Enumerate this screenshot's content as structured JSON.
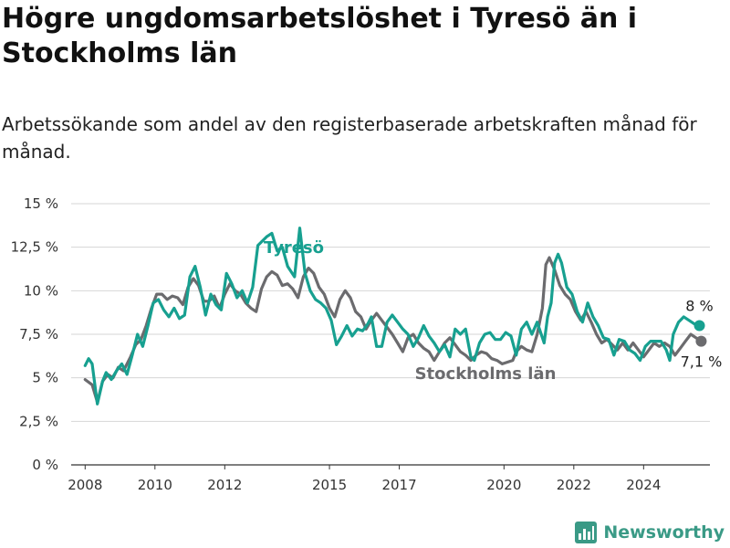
{
  "title": "Högre ungdomsarbetslöshet i Tyresö än i Stockholms län",
  "subtitle": "Arbetssökande som andel av den registerbaserade arbetskraften månad för månad.",
  "brand": {
    "name": "Newsworthy",
    "icon": "bar-chart-logo-icon",
    "color": "#3a9a86"
  },
  "chart_data": {
    "type": "line",
    "ylim": [
      0,
      15
    ],
    "xlim": [
      2007.6,
      2025.9
    ],
    "y_ticks": [
      {
        "value": 0,
        "label": "0 %"
      },
      {
        "value": 2.5,
        "label": "2,5 %"
      },
      {
        "value": 5,
        "label": "5 %"
      },
      {
        "value": 7.5,
        "label": "7,5 %"
      },
      {
        "value": 10,
        "label": "10 %"
      },
      {
        "value": 12.5,
        "label": "12,5 %"
      },
      {
        "value": 15,
        "label": "15 %"
      }
    ],
    "x_ticks": [
      {
        "value": 2008,
        "label": "2008"
      },
      {
        "value": 2010,
        "label": "2010"
      },
      {
        "value": 2012,
        "label": "2012"
      },
      {
        "value": 2015,
        "label": "2015"
      },
      {
        "value": 2017,
        "label": "2017"
      },
      {
        "value": 2020,
        "label": "2020"
      },
      {
        "value": 2022,
        "label": "2022"
      },
      {
        "value": 2024,
        "label": "2024"
      }
    ],
    "grid": "horizontal",
    "series": [
      {
        "name": "Stockholms län",
        "color": "#6b6b6e",
        "end_label": "7,1 %",
        "points": [
          [
            2008.0,
            4.9
          ],
          [
            2008.2,
            4.6
          ],
          [
            2008.35,
            3.6
          ],
          [
            2008.5,
            4.8
          ],
          [
            2008.65,
            5.2
          ],
          [
            2008.8,
            5.0
          ],
          [
            2008.95,
            5.6
          ],
          [
            2009.1,
            5.4
          ],
          [
            2009.3,
            6.2
          ],
          [
            2009.45,
            6.9
          ],
          [
            2009.6,
            7.2
          ],
          [
            2009.75,
            8.0
          ],
          [
            2009.9,
            9.0
          ],
          [
            2010.05,
            9.8
          ],
          [
            2010.2,
            9.8
          ],
          [
            2010.35,
            9.5
          ],
          [
            2010.5,
            9.7
          ],
          [
            2010.65,
            9.6
          ],
          [
            2010.8,
            9.2
          ],
          [
            2010.95,
            10.2
          ],
          [
            2011.1,
            10.7
          ],
          [
            2011.25,
            10.3
          ],
          [
            2011.4,
            9.4
          ],
          [
            2011.55,
            9.4
          ],
          [
            2011.7,
            9.7
          ],
          [
            2011.85,
            9.0
          ],
          [
            2012.0,
            9.8
          ],
          [
            2012.15,
            10.4
          ],
          [
            2012.3,
            10.0
          ],
          [
            2012.45,
            9.8
          ],
          [
            2012.6,
            9.3
          ],
          [
            2012.75,
            9.0
          ],
          [
            2012.9,
            8.8
          ],
          [
            2013.05,
            10.1
          ],
          [
            2013.2,
            10.8
          ],
          [
            2013.35,
            11.1
          ],
          [
            2013.5,
            10.9
          ],
          [
            2013.65,
            10.3
          ],
          [
            2013.8,
            10.4
          ],
          [
            2013.95,
            10.1
          ],
          [
            2014.1,
            9.6
          ],
          [
            2014.25,
            10.8
          ],
          [
            2014.4,
            11.3
          ],
          [
            2014.55,
            11.0
          ],
          [
            2014.7,
            10.2
          ],
          [
            2014.85,
            9.8
          ],
          [
            2015.0,
            9.0
          ],
          [
            2015.15,
            8.5
          ],
          [
            2015.3,
            9.5
          ],
          [
            2015.45,
            10.0
          ],
          [
            2015.6,
            9.6
          ],
          [
            2015.75,
            8.8
          ],
          [
            2015.9,
            8.5
          ],
          [
            2016.05,
            7.8
          ],
          [
            2016.2,
            8.3
          ],
          [
            2016.35,
            8.7
          ],
          [
            2016.5,
            8.3
          ],
          [
            2016.65,
            7.9
          ],
          [
            2016.8,
            7.5
          ],
          [
            2016.95,
            7.0
          ],
          [
            2017.1,
            6.5
          ],
          [
            2017.25,
            7.3
          ],
          [
            2017.4,
            7.5
          ],
          [
            2017.55,
            7.0
          ],
          [
            2017.7,
            6.7
          ],
          [
            2017.85,
            6.5
          ],
          [
            2018.0,
            6.0
          ],
          [
            2018.15,
            6.5
          ],
          [
            2018.3,
            7.0
          ],
          [
            2018.45,
            7.3
          ],
          [
            2018.6,
            6.9
          ],
          [
            2018.75,
            6.5
          ],
          [
            2018.9,
            6.3
          ],
          [
            2019.05,
            6.0
          ],
          [
            2019.2,
            6.3
          ],
          [
            2019.35,
            6.5
          ],
          [
            2019.5,
            6.4
          ],
          [
            2019.65,
            6.1
          ],
          [
            2019.8,
            6.0
          ],
          [
            2019.95,
            5.8
          ],
          [
            2020.25,
            6.0
          ],
          [
            2020.35,
            6.5
          ],
          [
            2020.5,
            6.8
          ],
          [
            2020.65,
            6.6
          ],
          [
            2020.8,
            6.5
          ],
          [
            2020.95,
            7.5
          ],
          [
            2021.1,
            9.0
          ],
          [
            2021.2,
            11.5
          ],
          [
            2021.3,
            11.9
          ],
          [
            2021.45,
            11.2
          ],
          [
            2021.6,
            10.3
          ],
          [
            2021.75,
            9.8
          ],
          [
            2021.9,
            9.5
          ],
          [
            2022.05,
            8.8
          ],
          [
            2022.2,
            8.3
          ],
          [
            2022.35,
            8.8
          ],
          [
            2022.5,
            8.2
          ],
          [
            2022.65,
            7.5
          ],
          [
            2022.8,
            7.0
          ],
          [
            2022.95,
            7.2
          ],
          [
            2023.1,
            6.9
          ],
          [
            2023.25,
            6.6
          ],
          [
            2023.4,
            7.0
          ],
          [
            2023.55,
            6.6
          ],
          [
            2023.7,
            7.0
          ],
          [
            2023.85,
            6.6
          ],
          [
            2024.0,
            6.2
          ],
          [
            2024.15,
            6.6
          ],
          [
            2024.3,
            7.0
          ],
          [
            2024.45,
            6.8
          ],
          [
            2024.6,
            7.0
          ],
          [
            2024.75,
            6.8
          ],
          [
            2024.9,
            6.3
          ],
          [
            2025.05,
            6.7
          ],
          [
            2025.2,
            7.1
          ],
          [
            2025.35,
            7.5
          ],
          [
            2025.5,
            7.3
          ],
          [
            2025.65,
            7.1
          ]
        ]
      },
      {
        "name": "Tyresö",
        "color": "#17a090",
        "end_label": "8 %",
        "points": [
          [
            2008.0,
            5.7
          ],
          [
            2008.1,
            6.1
          ],
          [
            2008.2,
            5.8
          ],
          [
            2008.35,
            3.5
          ],
          [
            2008.5,
            4.8
          ],
          [
            2008.6,
            5.3
          ],
          [
            2008.75,
            4.9
          ],
          [
            2008.9,
            5.4
          ],
          [
            2009.05,
            5.8
          ],
          [
            2009.2,
            5.2
          ],
          [
            2009.35,
            6.3
          ],
          [
            2009.5,
            7.5
          ],
          [
            2009.65,
            6.8
          ],
          [
            2009.8,
            8.0
          ],
          [
            2009.95,
            9.3
          ],
          [
            2010.1,
            9.5
          ],
          [
            2010.25,
            8.9
          ],
          [
            2010.4,
            8.5
          ],
          [
            2010.55,
            9.0
          ],
          [
            2010.7,
            8.4
          ],
          [
            2010.85,
            8.6
          ],
          [
            2011.0,
            10.8
          ],
          [
            2011.15,
            11.4
          ],
          [
            2011.3,
            10.2
          ],
          [
            2011.45,
            8.6
          ],
          [
            2011.6,
            9.8
          ],
          [
            2011.75,
            9.2
          ],
          [
            2011.9,
            8.9
          ],
          [
            2012.05,
            11.0
          ],
          [
            2012.2,
            10.4
          ],
          [
            2012.35,
            9.6
          ],
          [
            2012.5,
            10.0
          ],
          [
            2012.65,
            9.3
          ],
          [
            2012.8,
            10.2
          ],
          [
            2012.95,
            12.6
          ],
          [
            2013.05,
            12.8
          ],
          [
            2013.2,
            13.1
          ],
          [
            2013.35,
            13.3
          ],
          [
            2013.5,
            12.3
          ],
          [
            2013.65,
            12.5
          ],
          [
            2013.8,
            11.4
          ],
          [
            2014.0,
            10.8
          ],
          [
            2014.15,
            13.6
          ],
          [
            2014.3,
            11.0
          ],
          [
            2014.45,
            10.0
          ],
          [
            2014.6,
            9.5
          ],
          [
            2014.75,
            9.3
          ],
          [
            2014.9,
            9.0
          ],
          [
            2015.05,
            8.3
          ],
          [
            2015.2,
            6.9
          ],
          [
            2015.35,
            7.4
          ],
          [
            2015.5,
            8.0
          ],
          [
            2015.65,
            7.4
          ],
          [
            2015.8,
            7.8
          ],
          [
            2015.95,
            7.7
          ],
          [
            2016.1,
            8.1
          ],
          [
            2016.2,
            8.5
          ],
          [
            2016.35,
            6.8
          ],
          [
            2016.5,
            6.8
          ],
          [
            2016.65,
            8.2
          ],
          [
            2016.8,
            8.6
          ],
          [
            2016.95,
            8.2
          ],
          [
            2017.1,
            7.8
          ],
          [
            2017.25,
            7.5
          ],
          [
            2017.4,
            6.8
          ],
          [
            2017.55,
            7.3
          ],
          [
            2017.7,
            8.0
          ],
          [
            2017.85,
            7.4
          ],
          [
            2018.0,
            7.0
          ],
          [
            2018.15,
            6.5
          ],
          [
            2018.3,
            6.9
          ],
          [
            2018.45,
            6.2
          ],
          [
            2018.6,
            7.8
          ],
          [
            2018.75,
            7.5
          ],
          [
            2018.9,
            7.8
          ],
          [
            2019.05,
            6.2
          ],
          [
            2019.15,
            6.0
          ],
          [
            2019.3,
            7.0
          ],
          [
            2019.45,
            7.5
          ],
          [
            2019.6,
            7.6
          ],
          [
            2019.75,
            7.2
          ],
          [
            2019.9,
            7.2
          ],
          [
            2020.05,
            7.6
          ],
          [
            2020.2,
            7.4
          ],
          [
            2020.35,
            6.3
          ],
          [
            2020.5,
            7.8
          ],
          [
            2020.65,
            8.2
          ],
          [
            2020.8,
            7.5
          ],
          [
            2020.95,
            8.2
          ],
          [
            2021.05,
            7.6
          ],
          [
            2021.15,
            7.0
          ],
          [
            2021.25,
            8.5
          ],
          [
            2021.35,
            9.3
          ],
          [
            2021.45,
            11.6
          ],
          [
            2021.55,
            12.1
          ],
          [
            2021.65,
            11.6
          ],
          [
            2021.8,
            10.2
          ],
          [
            2021.95,
            9.8
          ],
          [
            2022.1,
            8.8
          ],
          [
            2022.25,
            8.2
          ],
          [
            2022.4,
            9.3
          ],
          [
            2022.55,
            8.5
          ],
          [
            2022.7,
            8.0
          ],
          [
            2022.85,
            7.3
          ],
          [
            2023.0,
            7.2
          ],
          [
            2023.15,
            6.3
          ],
          [
            2023.3,
            7.2
          ],
          [
            2023.45,
            7.1
          ],
          [
            2023.6,
            6.6
          ],
          [
            2023.75,
            6.4
          ],
          [
            2023.9,
            6.0
          ],
          [
            2024.05,
            6.8
          ],
          [
            2024.2,
            7.1
          ],
          [
            2024.35,
            7.1
          ],
          [
            2024.5,
            7.1
          ],
          [
            2024.65,
            6.6
          ],
          [
            2024.75,
            6.0
          ],
          [
            2024.85,
            7.5
          ],
          [
            2025.0,
            8.2
          ],
          [
            2025.15,
            8.5
          ],
          [
            2025.3,
            8.3
          ],
          [
            2025.45,
            8.1
          ],
          [
            2025.6,
            8.0
          ]
        ]
      }
    ]
  }
}
